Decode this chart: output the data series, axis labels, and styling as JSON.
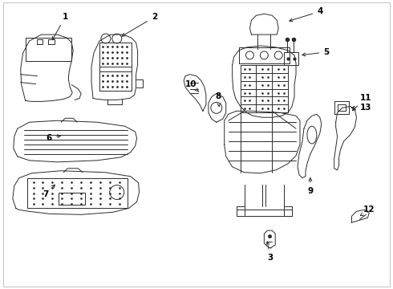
{
  "background_color": "#ffffff",
  "line_color": "#2a2a2a",
  "label_color": "#000000",
  "figsize": [
    4.9,
    3.6
  ],
  "dpi": 100,
  "border_color": "#cccccc"
}
